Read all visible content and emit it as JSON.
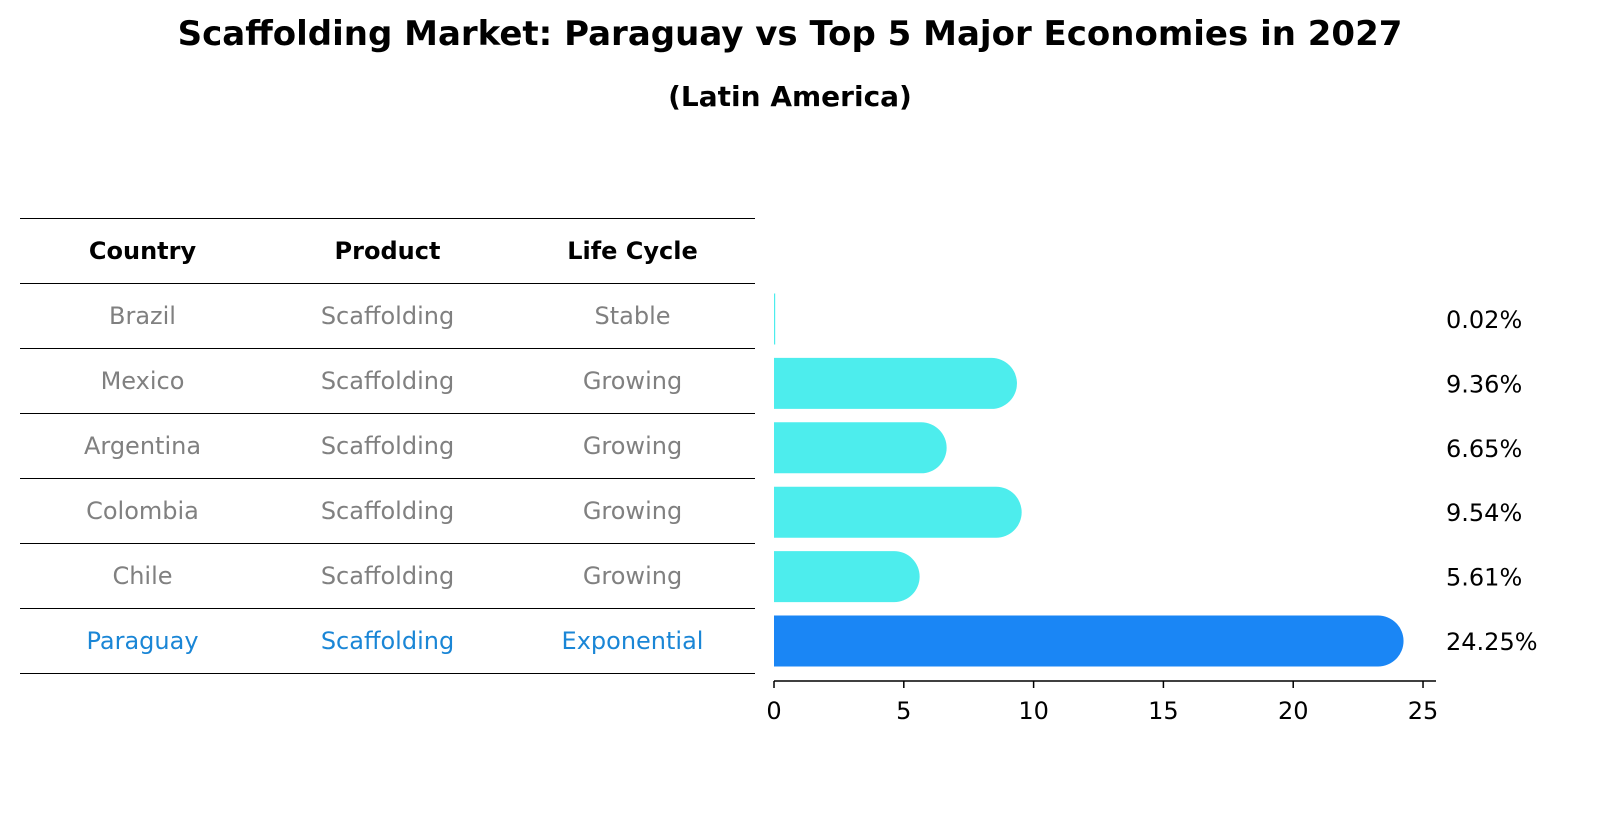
{
  "chart": {
    "title": "Scaffolding Market: Paraguay vs Top 5 Major Economies in 2027",
    "subtitle": "(Latin America)"
  },
  "table": {
    "headers": [
      "Country",
      "Product",
      "Life Cycle"
    ],
    "rows": [
      {
        "country": "Brazil",
        "product": "Scaffolding",
        "life_cycle": "Stable"
      },
      {
        "country": "Mexico",
        "product": "Scaffolding",
        "life_cycle": "Growing"
      },
      {
        "country": "Argentina",
        "product": "Scaffolding",
        "life_cycle": "Growing"
      },
      {
        "country": "Colombia",
        "product": "Scaffolding",
        "life_cycle": "Growing"
      },
      {
        "country": "Chile",
        "product": "Scaffolding",
        "life_cycle": "Growing"
      },
      {
        "country": "Paraguay",
        "product": "Scaffolding",
        "life_cycle": "Exponential"
      }
    ]
  },
  "colors": {
    "default_text": "#808080",
    "highlight_text": "#1a86d6",
    "bar_default": "#4deded",
    "bar_highlight": "#1a86f5",
    "axis": "#000000"
  },
  "chart_data": {
    "type": "bar",
    "orientation": "horizontal",
    "title": "Scaffolding Market: Paraguay vs Top 5 Major Economies in 2027",
    "subtitle": "(Latin America)",
    "categories": [
      "Brazil",
      "Mexico",
      "Argentina",
      "Colombia",
      "Chile",
      "Paraguay"
    ],
    "values": [
      0.02,
      9.36,
      6.65,
      9.54,
      5.61,
      24.25
    ],
    "value_labels": [
      "0.02%",
      "9.36%",
      "6.65%",
      "9.54%",
      "5.61%",
      "24.25%"
    ],
    "highlight": "Paraguay",
    "xlim": [
      0,
      25.5
    ],
    "xticks": [
      0,
      5,
      10,
      15,
      20,
      25
    ],
    "xlabel": "",
    "ylabel": "",
    "grid": false,
    "legend": false
  }
}
